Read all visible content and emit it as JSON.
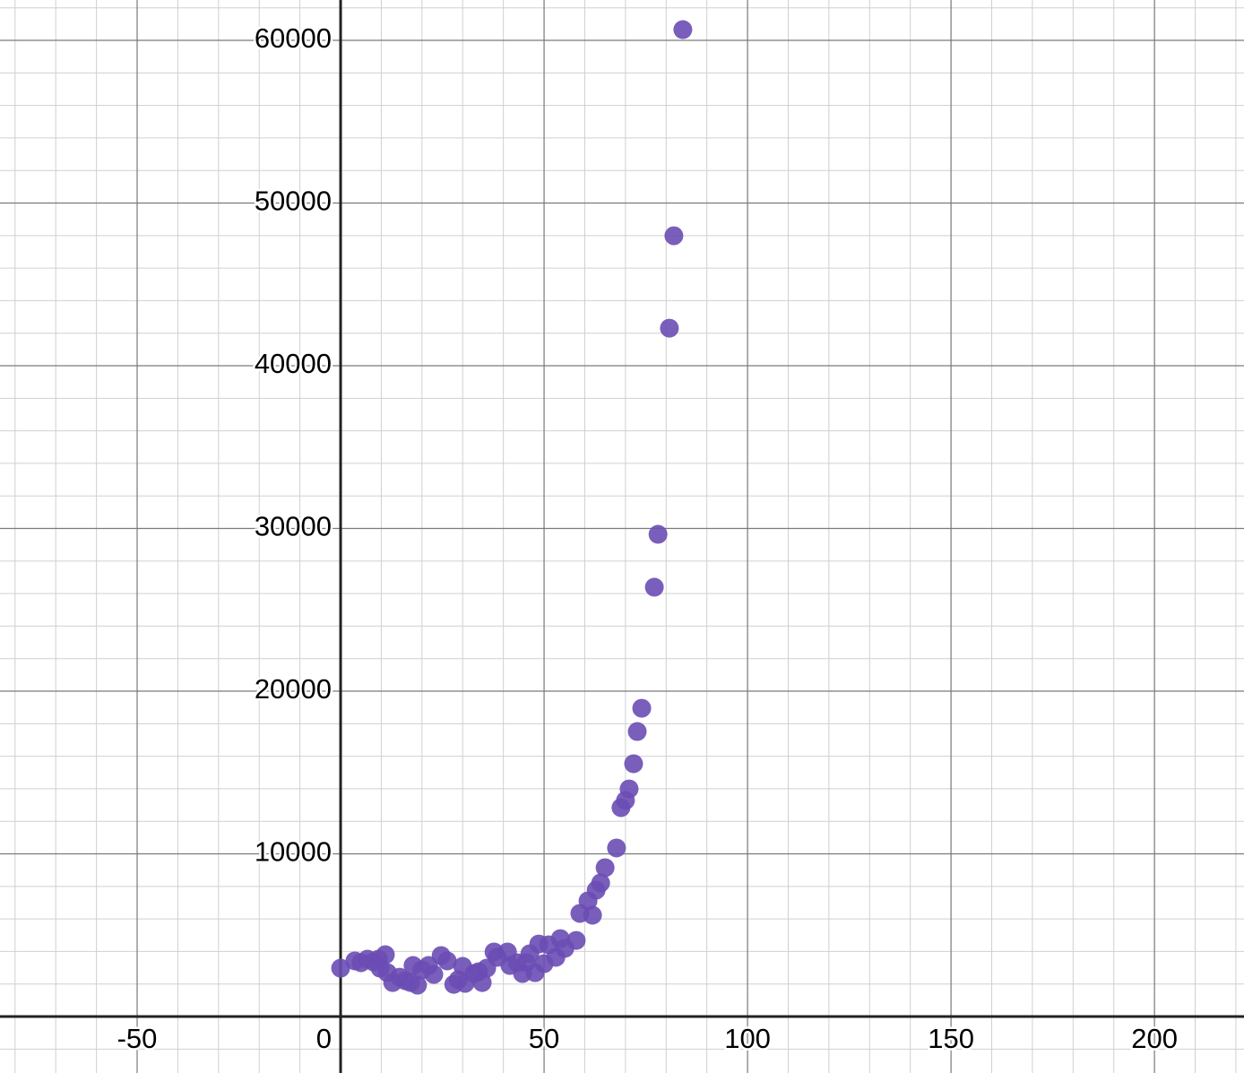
{
  "chart_data": {
    "type": "scatter",
    "series": [
      {
        "color": "#6a4cb4",
        "x": [
          0,
          3.5,
          5,
          6.6,
          8.1,
          9.3,
          9.7,
          11,
          11.5,
          12.8,
          14.5,
          15.9,
          17.2,
          17.8,
          18.9,
          20,
          21.6,
          22.9,
          24.7,
          26.2,
          27.8,
          28.9,
          30,
          30.6,
          32.8,
          33.9,
          34.8,
          35.9,
          37.7,
          38.5,
          41,
          41.6,
          43.4,
          44.7,
          45.6,
          46.5,
          47.8,
          48.7,
          50,
          51.1,
          52.9,
          54,
          55.1,
          57.9,
          58.8,
          60.8,
          61.9,
          62.8,
          63.9,
          65,
          67.8,
          68.9,
          70,
          70.9,
          72,
          72.9,
          74,
          77.1,
          78,
          80.8,
          81.9,
          84.1
        ],
        "values": [
          2975,
          3420,
          3310,
          3530,
          3360,
          3530,
          2975,
          3800,
          2700,
          2090,
          2420,
          2200,
          2090,
          3140,
          1930,
          2865,
          3140,
          2590,
          3750,
          3420,
          1980,
          2260,
          3085,
          2040,
          2645,
          2755,
          2090,
          2975,
          3970,
          3640,
          3970,
          3140,
          3310,
          2645,
          3310,
          3860,
          2700,
          4460,
          3250,
          4410,
          3640,
          4790,
          4190,
          4680,
          6340,
          7110,
          6230,
          7770,
          8210,
          9150,
          10360,
          12840,
          13280,
          13990,
          15540,
          17520,
          18950,
          26390,
          29640,
          42310,
          47990,
          60660
        ]
      }
    ],
    "xlim": [
      -83.7,
      222
    ],
    "ylim": [
      -3470,
      62480
    ],
    "xticks": [
      -50,
      0,
      50,
      100,
      150,
      200
    ],
    "yticks": [
      10000,
      20000,
      30000,
      40000,
      50000,
      60000
    ],
    "grid": true,
    "xminor": 10,
    "yminor": 2000
  }
}
